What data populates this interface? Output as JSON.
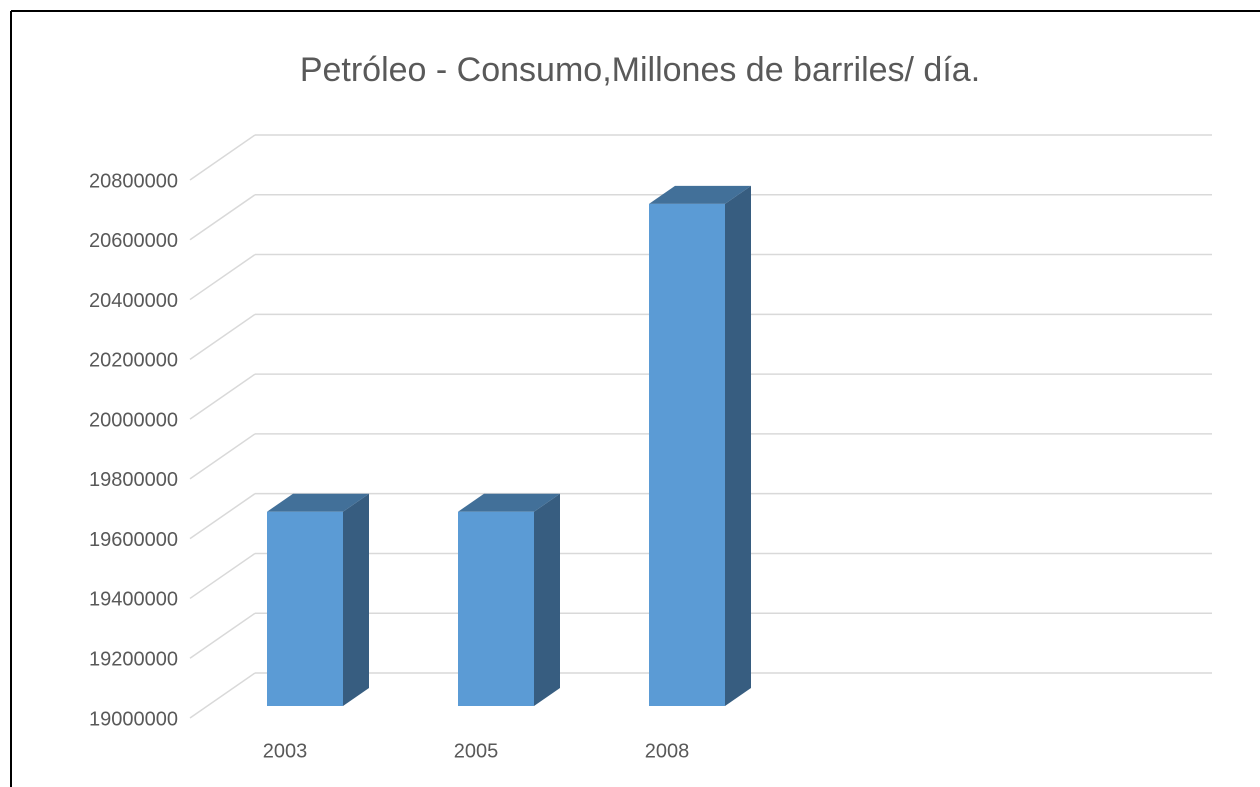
{
  "chart_data": {
    "type": "bar3d",
    "title": "Petróleo - Consumo,Millones  de barriles/ día.",
    "categories": [
      "2003",
      "2005",
      "2008"
    ],
    "values": [
      19650000,
      19650000,
      20680000
    ],
    "color": "#5b9bd5",
    "ylim": [
      19000000,
      20800000
    ],
    "yticks": [
      19000000,
      19200000,
      19400000,
      19600000,
      19800000,
      20000000,
      20200000,
      20400000,
      20600000,
      20800000
    ],
    "grid": true
  }
}
